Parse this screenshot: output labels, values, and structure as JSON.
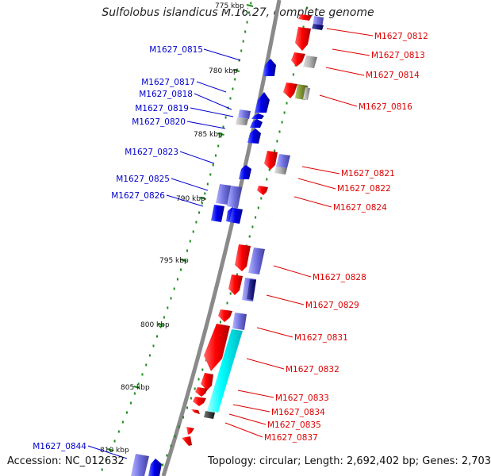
{
  "title": "Sulfolobus islandicus M.16.27, complete genome",
  "accession": "Accession: NC_012632",
  "topology": "Topology: circular; Length: 2,692,402 bp; Genes: 2,703",
  "colors": {
    "forward": "#ff0000",
    "reverse": "#0000ee",
    "label_forward": "#dd0000",
    "label_reverse": "#0000cc",
    "dot": "#1e8c1e",
    "backbone": "#888888",
    "cyan": "#00ffff"
  },
  "tick_labels": [
    "775 kbp",
    "780 kbp",
    "785 kbp",
    "790 kbp",
    "795 kbp",
    "800 kbp",
    "805 kbp",
    "810 kbp"
  ],
  "gene_labels_left": [
    "M1627_0815",
    "M1627_0817",
    "M1627_0818",
    "M1627_0819",
    "M1627_0820",
    "M1627_0823",
    "M1627_0825",
    "M1627_0826",
    "M1627_0844"
  ],
  "gene_labels_right": [
    "M1627_0812",
    "M1627_0813",
    "M1627_0814",
    "M1627_0816",
    "M1627_0821",
    "M1627_0822",
    "M1627_0824",
    "M1627_0828",
    "M1627_0829",
    "M1627_0831",
    "M1627_0832",
    "M1627_0833",
    "M1627_0834",
    "M1627_0835",
    "M1627_0837"
  ]
}
